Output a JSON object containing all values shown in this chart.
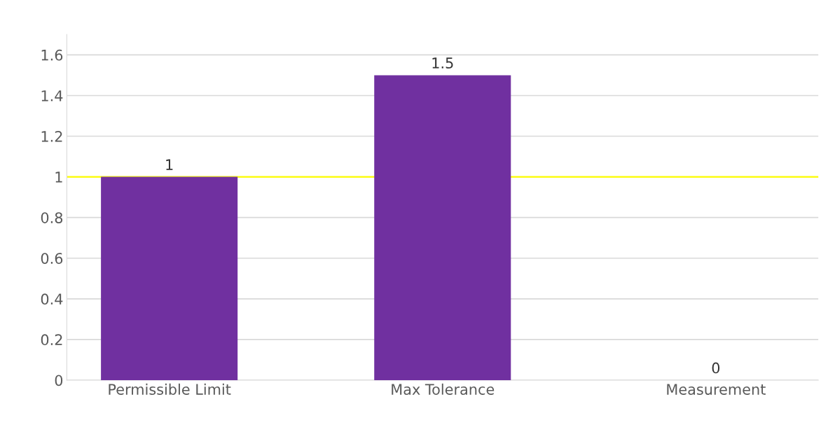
{
  "chart_data": {
    "type": "bar",
    "categories": [
      "Permissible Limit",
      "Max Tolerance",
      "Measurement"
    ],
    "values": [
      1,
      1.5,
      0
    ],
    "color": "#7030a0",
    "data_labels": true,
    "ylim": [
      0,
      1.7
    ],
    "yticks": [
      0,
      0.2,
      0.4,
      0.6,
      0.8,
      1,
      1.2,
      1.4,
      1.6
    ],
    "grid": "y",
    "ref_lines": [
      {
        "axis": "y",
        "value": 1,
        "color": "#ffff00"
      }
    ]
  }
}
